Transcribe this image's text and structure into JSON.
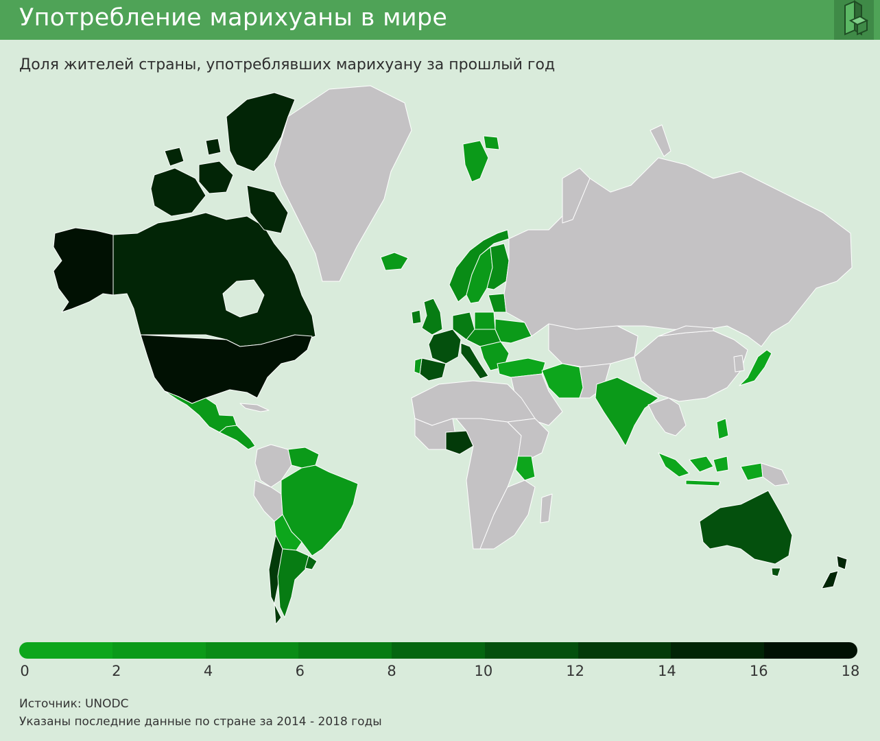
{
  "header": {
    "title": "Употребление марихуаны в мире",
    "subtitle": "Доля жителей страны, употреблявших марихуану за прошлый год"
  },
  "legend": {
    "ticks": [
      "0",
      "2",
      "4",
      "6",
      "8",
      "10",
      "12",
      "14",
      "16",
      "18"
    ],
    "colors": [
      "#0da61c",
      "#0b9a19",
      "#098c16",
      "#077c13",
      "#056610",
      "#04500d",
      "#033a09",
      "#022506",
      "#011103"
    ]
  },
  "colors": {
    "no_data": "#c4c2c4",
    "ocean": "#d9ebdb",
    "header": "#4fa357",
    "border": "#ffffff"
  },
  "map_data": {
    "unit": "%",
    "scale": [
      0,
      18
    ],
    "countries": [
      {
        "name": "USA",
        "band": "16-18"
      },
      {
        "name": "Canada",
        "band": "14-16"
      },
      {
        "name": "Greenland",
        "band": "no data"
      },
      {
        "name": "Mexico",
        "band": "2-4"
      },
      {
        "name": "Central America",
        "band": "2-4"
      },
      {
        "name": "Venezuela",
        "band": "2-4"
      },
      {
        "name": "Brazil",
        "band": "2-4"
      },
      {
        "name": "Bolivia",
        "band": "0-2"
      },
      {
        "name": "Chile",
        "band": "12-14"
      },
      {
        "name": "Argentina",
        "band": "6-8"
      },
      {
        "name": "Uruguay",
        "band": "8-10"
      },
      {
        "name": "Iceland",
        "band": "2-4"
      },
      {
        "name": "Svalbard",
        "band": "2-4"
      },
      {
        "name": "Norway",
        "band": "4-6"
      },
      {
        "name": "Sweden",
        "band": "2-4"
      },
      {
        "name": "Finland",
        "band": "4-6"
      },
      {
        "name": "United Kingdom",
        "band": "6-8"
      },
      {
        "name": "Ireland",
        "band": "6-8"
      },
      {
        "name": "France",
        "band": "10-12"
      },
      {
        "name": "Spain",
        "band": "10-12"
      },
      {
        "name": "Portugal",
        "band": "2-4"
      },
      {
        "name": "Italy",
        "band": "10-12"
      },
      {
        "name": "Germany",
        "band": "6-8"
      },
      {
        "name": "Poland",
        "band": "2-4"
      },
      {
        "name": "Central Europe",
        "band": "4-6"
      },
      {
        "name": "Balkans",
        "band": "2-4"
      },
      {
        "name": "Ukraine",
        "band": "2-4"
      },
      {
        "name": "Baltic states",
        "band": "4-6"
      },
      {
        "name": "Turkey",
        "band": "0-2"
      },
      {
        "name": "Iran",
        "band": "0-2"
      },
      {
        "name": "India",
        "band": "2-4"
      },
      {
        "name": "Nigeria",
        "band": "12-14"
      },
      {
        "name": "Kenya",
        "band": "0-2"
      },
      {
        "name": "Indonesia",
        "band": "0-2"
      },
      {
        "name": "Philippines",
        "band": "0-2"
      },
      {
        "name": "Japan",
        "band": "0-2"
      },
      {
        "name": "Australia",
        "band": "10-12"
      },
      {
        "name": "New Zealand",
        "band": "14-16"
      },
      {
        "name": "Russia",
        "band": "no data"
      },
      {
        "name": "China",
        "band": "no data"
      },
      {
        "name": "Africa (rest)",
        "band": "no data"
      },
      {
        "name": "South America (rest)",
        "band": "no data"
      }
    ]
  },
  "footer": {
    "source": "Источник: UNODC",
    "note": "Указаны последние данные по стране за 2014 - 2018 годы"
  }
}
